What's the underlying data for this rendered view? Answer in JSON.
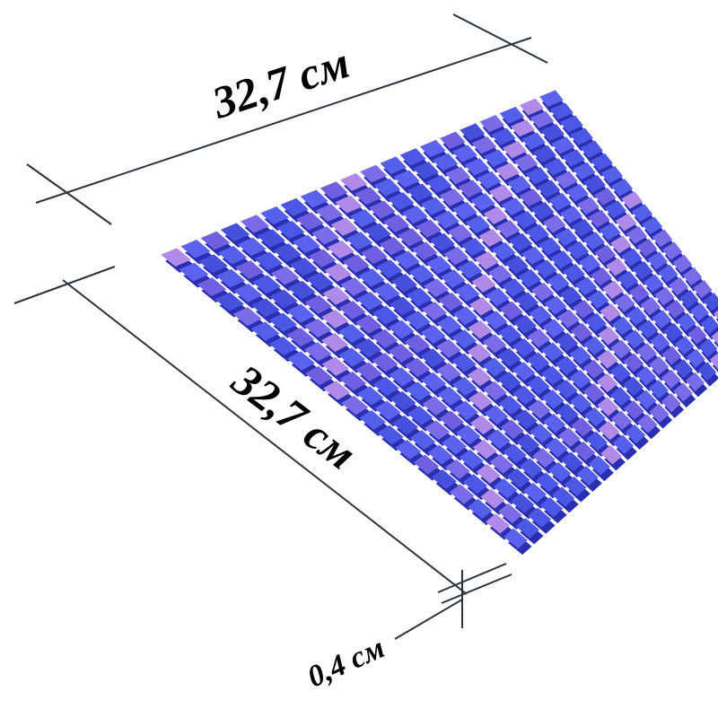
{
  "product": {
    "type": "glass mosaic tile sheet",
    "tile_color": "#4a52e0",
    "highlight_color": "#b08ae8",
    "shadow_color": "#2a2fb0"
  },
  "dimensions": {
    "width_label": "32,7 см",
    "length_label": "32,7 см",
    "thickness_label": "0,4 см",
    "line_color": "#2b3340"
  }
}
